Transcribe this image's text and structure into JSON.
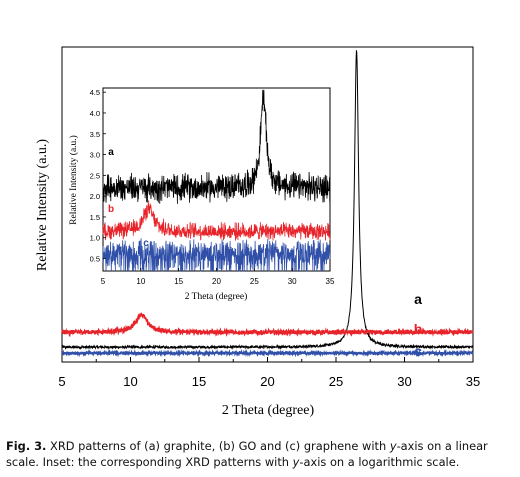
{
  "chart_data": [
    {
      "type": "line",
      "xlabel": "2 Theta (degree)",
      "ylabel": "Relative Intensity (a.u.)",
      "xlim": [
        5,
        35
      ],
      "x_ticks": [
        "5",
        "10",
        "15",
        "20",
        "25",
        "30",
        "35"
      ],
      "y_ticks": [],
      "yscale": "linear",
      "grid": false,
      "series": [
        {
          "name": "a",
          "color": "#000000",
          "baseline": 0.05,
          "peaks": [
            {
              "x": 26.5,
              "height": 1.0,
              "width": 0.18
            }
          ],
          "noise": 0.004
        },
        {
          "name": "b",
          "color": "#e8242b",
          "baseline": 0.1,
          "peaks": [
            {
              "x": 10.8,
              "height": 0.06,
              "width": 0.5
            }
          ],
          "noise": 0.007
        },
        {
          "name": "c",
          "color": "#2f4fa8",
          "baseline": 0.03,
          "peaks": [],
          "noise": 0.004
        }
      ],
      "labels": [
        "a",
        "b",
        "c"
      ]
    },
    {
      "type": "line",
      "inset": true,
      "xlabel": "2 Theta (degree)",
      "ylabel": "Relative Intensity (a.u.)",
      "xlim": [
        5,
        35
      ],
      "ylim": [
        0.2,
        4.6
      ],
      "yscale": "log",
      "x_ticks": [
        "5",
        "10",
        "15",
        "20",
        "25",
        "30",
        "35"
      ],
      "y_ticks": [
        "0.5",
        "1.0",
        "1.5",
        "2.0",
        "2.5",
        "3.0",
        "3.5",
        "4.0",
        "4.5"
      ],
      "grid": false,
      "series": [
        {
          "name": "a",
          "color": "#000000",
          "baseline": 2.2,
          "peaks": [
            {
              "x": 26.2,
              "height": 2.2,
              "width": 0.45
            }
          ],
          "noise": 0.25
        },
        {
          "name": "b",
          "color": "#e8242b",
          "baseline": 1.15,
          "peaks": [
            {
              "x": 11.0,
              "height": 0.55,
              "width": 0.8
            }
          ],
          "noise": 0.15
        },
        {
          "name": "c",
          "color": "#2f4fa8",
          "baseline": 0.65,
          "peaks": [],
          "noise": 0.22
        }
      ],
      "labels": [
        "a",
        "b",
        "c"
      ]
    }
  ],
  "caption": {
    "label": "Fig. 3.",
    "text_1": "XRD patterns of (a) graphite, (b) GO and (c) graphene with ",
    "axis_var_1": "y",
    "text_2": "-axis on a linear scale. Inset: the corresponding XRD patterns with ",
    "axis_var_2": "y",
    "text_3": "-axis on a logarithmic scale."
  }
}
